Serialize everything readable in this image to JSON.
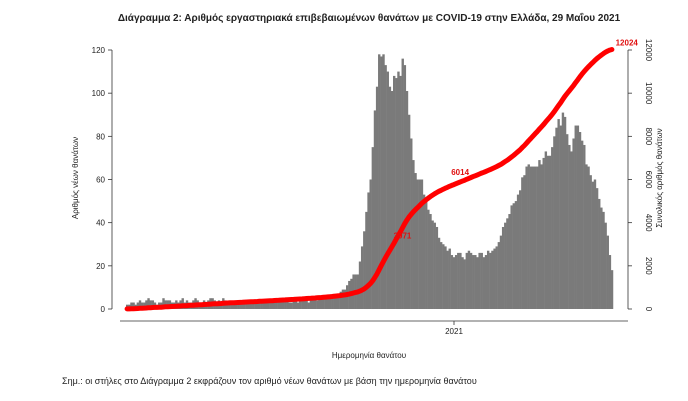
{
  "chart_data": {
    "type": "bar",
    "title": "Διάγραμμα 2: Αριθμός εργαστηριακά επιβεβαιωμένων θανάτων με COVID-19 στην Ελλάδα, 29 Μαΐου 2021",
    "xlabel": "Ημερομηνία θανάτου",
    "ylabel": "Αριθμός νέων θανάτων",
    "y2label": "Συνολικός αριθμός θανάτων",
    "ylim": [
      0,
      120
    ],
    "y2lim": [
      0,
      12000
    ],
    "yticks": [
      "0",
      "20",
      "40",
      "60",
      "80",
      "100",
      "120"
    ],
    "y2ticks": [
      "0",
      "2000",
      "4000",
      "6000",
      "8000",
      "10000",
      "12000"
    ],
    "xtick": "2021",
    "series": [
      {
        "type": "bar",
        "color": "#7a7a7a",
        "values": [
          2,
          2,
          3,
          3,
          2,
          3,
          4,
          3,
          3,
          4,
          5,
          4,
          4,
          3,
          2,
          3,
          3,
          5,
          4,
          4,
          4,
          3,
          3,
          4,
          3,
          4,
          5,
          3,
          4,
          3,
          3,
          4,
          5,
          4,
          3,
          3,
          4,
          3,
          4,
          5,
          5,
          4,
          3,
          4,
          3,
          5,
          4,
          3,
          4,
          3,
          3,
          3,
          3,
          3,
          3,
          4,
          3,
          3,
          4,
          3,
          3,
          3,
          4,
          3,
          3,
          4,
          3,
          3,
          3,
          4,
          3,
          3,
          5,
          4,
          4,
          4,
          3,
          3,
          4,
          4,
          3,
          4,
          4,
          5,
          4,
          3,
          5,
          4,
          5,
          4,
          5,
          5,
          6,
          5,
          5,
          6,
          6,
          7,
          6,
          7,
          8,
          9,
          9,
          11,
          13,
          14,
          16,
          16,
          16,
          22,
          29,
          36,
          45,
          54,
          60,
          75,
          92,
          103,
          118,
          117,
          118,
          113,
          110,
          103,
          101,
          108,
          107,
          110,
          108,
          116,
          113,
          101,
          90,
          79,
          69,
          63,
          60,
          60,
          60,
          53,
          51,
          46,
          44,
          41,
          40,
          38,
          33,
          31,
          30,
          29,
          27,
          28,
          25,
          24,
          25,
          26,
          26,
          24,
          23,
          26,
          27,
          26,
          25,
          25,
          24,
          26,
          26,
          24,
          25,
          27,
          26,
          27,
          28,
          29,
          31,
          34,
          38,
          40,
          42,
          44,
          48,
          49,
          50,
          53,
          55,
          61,
          62,
          66,
          67,
          66,
          66,
          66,
          66,
          69,
          67,
          70,
          73,
          71,
          71,
          75,
          80,
          84,
          88,
          85,
          91,
          89,
          81,
          76,
          73,
          79,
          85,
          85,
          82,
          78,
          76,
          67,
          66,
          62,
          59,
          60,
          56,
          51,
          47,
          45,
          40,
          34,
          25,
          18
        ]
      },
      {
        "type": "line",
        "color": "#ff0000",
        "cumulative_total": 12024,
        "labels": [
          {
            "text": "3071",
            "at_index": 128,
            "y": 3071
          },
          {
            "text": "6014",
            "at_index": 155,
            "y": 6014
          },
          {
            "text": "12024",
            "at_index": 233,
            "y": 12024
          }
        ]
      }
    ]
  },
  "footnote": "Σημ.: οι στήλες στο Διάγραμμα 2 εκφράζουν τον αριθμό νέων θανάτων με βάση την ημερομηνία θανάτου"
}
